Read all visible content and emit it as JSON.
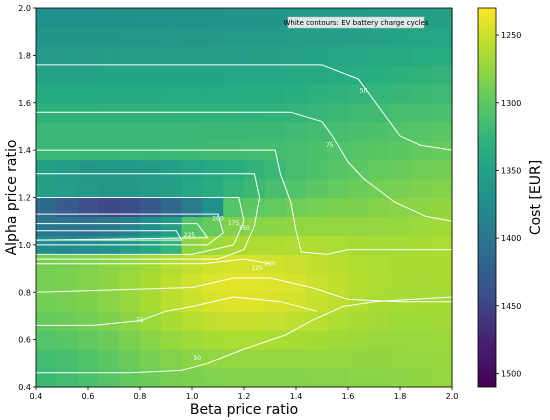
{
  "chart_data": {
    "type": "heatmap",
    "xlabel": "Beta price ratio",
    "ylabel": "Alpha price ratio",
    "xlim": [
      0.4,
      2.0
    ],
    "ylim": [
      0.4,
      2.0
    ],
    "xticks": [
      "0.4",
      "0.6",
      "0.8",
      "1.0",
      "1.2",
      "1.4",
      "1.6",
      "1.8",
      "2.0"
    ],
    "yticks": [
      "0.4",
      "0.6",
      "0.8",
      "1.0",
      "1.2",
      "1.4",
      "1.6",
      "1.8",
      "2.0"
    ],
    "colorbar": {
      "label": "Cost [EUR]",
      "colormap": "viridis_r",
      "range": [
        1230,
        1510
      ],
      "ticks": [
        "1250",
        "1300",
        "1350",
        "1400",
        "1450",
        "1500"
      ]
    },
    "grid_resolution": 0.08,
    "cost_field": {
      "description_points": [
        {
          "beta": 0.45,
          "alpha": 1.95,
          "cost": 1370
        },
        {
          "beta": 1.0,
          "alpha": 1.9,
          "cost": 1360
        },
        {
          "beta": 1.6,
          "alpha": 1.6,
          "cost": 1340
        },
        {
          "beta": 0.5,
          "alpha": 1.05,
          "cost": 1505
        },
        {
          "beta": 0.8,
          "alpha": 1.15,
          "cost": 1445
        },
        {
          "beta": 1.15,
          "alpha": 0.82,
          "cost": 1232
        },
        {
          "beta": 2.0,
          "alpha": 0.4,
          "cost": 1260
        }
      ]
    },
    "contour_annotation": "White contours: EV battery charge cycles",
    "contour_levels": [
      "50",
      "75",
      "100",
      "125",
      "150",
      "175",
      "200",
      "225"
    ],
    "contour_lines": [
      {
        "level": "50",
        "points": [
          [
            0.4,
            1.76
          ],
          [
            1.5,
            1.76
          ],
          [
            1.64,
            1.7
          ],
          [
            1.72,
            1.58
          ],
          [
            1.8,
            1.46
          ],
          [
            1.88,
            1.42
          ],
          [
            2.0,
            1.4
          ]
        ],
        "label_at": [
          1.66,
          1.65
        ]
      },
      {
        "level": "75",
        "points": [
          [
            0.4,
            1.56
          ],
          [
            1.38,
            1.56
          ],
          [
            1.5,
            1.52
          ],
          [
            1.54,
            1.46
          ],
          [
            1.6,
            1.35
          ],
          [
            1.66,
            1.28
          ],
          [
            1.78,
            1.18
          ],
          [
            1.9,
            1.12
          ],
          [
            2.0,
            1.1
          ]
        ],
        "label_at": [
          1.53,
          1.42
        ]
      },
      {
        "level": "100",
        "points": [
          [
            0.4,
            1.4
          ],
          [
            1.32,
            1.4
          ],
          [
            1.34,
            1.3
          ],
          [
            1.38,
            1.18
          ],
          [
            1.4,
            1.06
          ],
          [
            1.42,
            0.97
          ],
          [
            1.52,
            0.96
          ]
        ],
        "label_at": [
          1.3,
          0.92
        ]
      },
      {
        "level": "125",
        "points": [
          [
            0.4,
            1.3
          ],
          [
            1.24,
            1.3
          ],
          [
            1.26,
            1.2
          ],
          [
            1.24,
            1.08
          ],
          [
            1.2,
            0.98
          ],
          [
            1.1,
            0.94
          ],
          [
            0.4,
            0.94
          ]
        ],
        "label_at": [
          1.25,
          0.9
        ]
      },
      {
        "level": "150",
        "points": [
          [
            0.4,
            1.2
          ],
          [
            1.18,
            1.2
          ],
          [
            1.2,
            1.1
          ],
          [
            1.16,
            1.0
          ],
          [
            1.0,
            0.96
          ],
          [
            0.4,
            0.96
          ]
        ],
        "label_at": [
          1.2,
          1.07
        ]
      },
      {
        "level": "175",
        "points": [
          [
            0.4,
            1.13
          ],
          [
            1.1,
            1.13
          ],
          [
            1.12,
            1.05
          ],
          [
            1.06,
            1.0
          ],
          [
            0.4,
            1.0
          ]
        ],
        "label_at": [
          1.16,
          1.09
        ]
      },
      {
        "level": "200",
        "points": [
          [
            0.4,
            1.09
          ],
          [
            1.02,
            1.09
          ],
          [
            1.06,
            1.03
          ],
          [
            0.4,
            1.02
          ]
        ],
        "label_at": [
          1.1,
          1.11
        ]
      },
      {
        "level": "225",
        "points": [
          [
            0.4,
            1.06
          ],
          [
            0.94,
            1.06
          ],
          [
            0.96,
            1.02
          ],
          [
            0.4,
            1.02
          ]
        ],
        "label_at": [
          0.99,
          1.04
        ]
      },
      {
        "level": "100",
        "points": [
          [
            1.52,
            0.96
          ],
          [
            1.6,
            0.98
          ],
          [
            1.8,
            0.98
          ],
          [
            2.0,
            0.98
          ]
        ],
        "label_at": null
      },
      {
        "level": "100",
        "points": [
          [
            0.4,
            0.92
          ],
          [
            1.04,
            0.92
          ],
          [
            1.2,
            0.94
          ],
          [
            1.3,
            0.92
          ]
        ],
        "label_at": null
      },
      {
        "level": "75",
        "points": [
          [
            0.4,
            0.8
          ],
          [
            1.0,
            0.82
          ],
          [
            1.16,
            0.86
          ],
          [
            1.3,
            0.86
          ],
          [
            1.46,
            0.82
          ],
          [
            1.6,
            0.77
          ],
          [
            1.8,
            0.76
          ],
          [
            2.0,
            0.76
          ]
        ],
        "label_at": null
      },
      {
        "level": "75",
        "points": [
          [
            0.4,
            0.66
          ],
          [
            0.62,
            0.66
          ],
          [
            0.8,
            0.68
          ],
          [
            0.9,
            0.72
          ],
          [
            1.0,
            0.74
          ],
          [
            1.16,
            0.78
          ],
          [
            1.34,
            0.76
          ],
          [
            1.48,
            0.72
          ]
        ],
        "label_at": [
          0.8,
          0.68
        ]
      },
      {
        "level": "50",
        "points": [
          [
            0.4,
            0.46
          ],
          [
            0.76,
            0.46
          ],
          [
            0.96,
            0.47
          ],
          [
            1.06,
            0.5
          ],
          [
            1.2,
            0.56
          ],
          [
            1.36,
            0.62
          ],
          [
            1.46,
            0.68
          ],
          [
            1.58,
            0.74
          ],
          [
            1.7,
            0.76
          ],
          [
            2.0,
            0.78
          ]
        ],
        "label_at": [
          1.02,
          0.52
        ]
      }
    ]
  }
}
